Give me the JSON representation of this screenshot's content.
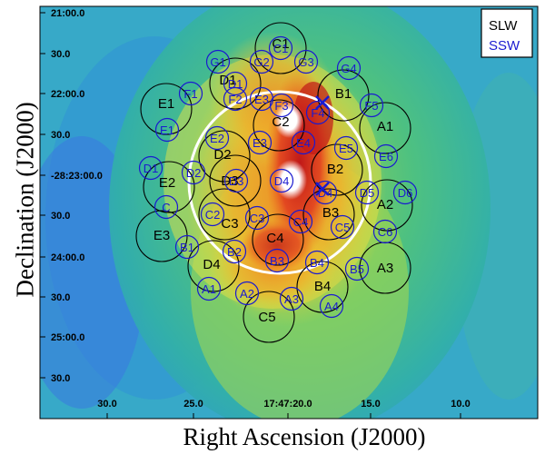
{
  "figure": {
    "xlabel": "Right Ascension (J2000)",
    "ylabel": "Declination (J2000)",
    "colors": {
      "slw": "#000000",
      "ssw": "#1a1ad0",
      "ring": "#ffffff"
    },
    "legend": {
      "placement": "top-right",
      "entries": [
        "SLW",
        "SSW"
      ]
    },
    "x_ticks": [
      "30.0",
      "25.0",
      "17:47:20.0",
      "15.0",
      "10.0"
    ],
    "y_ticks": [
      "21:00.0",
      "30.0",
      "22:00.0",
      "30.0",
      "-28:23:00.0",
      "30.0",
      "24:00.0",
      "30.0",
      "25:00.0",
      "30.0"
    ],
    "slw_markers": [
      "C1",
      "D1",
      "B1",
      "E1",
      "C2",
      "A1",
      "D2",
      "B2",
      "E2",
      "D3",
      "A2",
      "B3",
      "C3",
      "E3",
      "C4",
      "A3",
      "D4",
      "B4",
      "C5"
    ],
    "ssw_markers": [
      "C1",
      "G1",
      "G2",
      "G3",
      "G4",
      "D1",
      "F1",
      "F2",
      "E3",
      "F3",
      "F4",
      "F5",
      "E1",
      "E2",
      "E3",
      "E4",
      "E5",
      "E6",
      "D1",
      "D2",
      "D3",
      "D4",
      "D4",
      "D5",
      "D6",
      "C",
      "C2",
      "C3",
      "C4",
      "C5",
      "C6",
      "B1",
      "B2",
      "B3",
      "B4",
      "B5",
      "A1",
      "A2",
      "A3",
      "A4"
    ]
  }
}
